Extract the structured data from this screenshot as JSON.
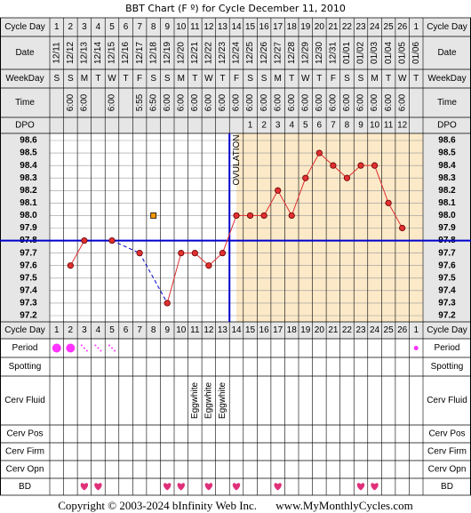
{
  "title": "BBT Chart (F º) for Cycle December 11, 2010",
  "footer": {
    "copyright": "Copyright © 2003-2024 bInfinity Web Inc.",
    "site": "www.MyMonthlyCycles.com"
  },
  "colors": {
    "coverline": "#0000cc",
    "temp_line": "#e03030",
    "point_fill": "#e03030",
    "post_ovulation_shade": "#fbe9c8",
    "header_bg": "#e6e6e6",
    "period_fill": "#ff33ff",
    "heart": "#e0307a",
    "marker": "#ff9900"
  },
  "row_labels": {
    "cycle_day": "Cycle Day",
    "date": "Date",
    "weekday": "WeekDay",
    "time": "Time",
    "dpo": "DPO",
    "period": "Period",
    "spotting": "Spotting",
    "cerv_fluid": "Cerv Fluid",
    "cerv_pos": "Cerv Pos",
    "cerv_firm": "Cerv Firm",
    "cerv_opn": "Cerv Opn",
    "bd": "BD"
  },
  "cycle_days": [
    "1",
    "2",
    "3",
    "4",
    "5",
    "6",
    "7",
    "8",
    "9",
    "10",
    "11",
    "12",
    "13",
    "14",
    "15",
    "16",
    "17",
    "18",
    "19",
    "20",
    "21",
    "22",
    "23",
    "24",
    "25",
    "26",
    "1"
  ],
  "dates": [
    "12/11",
    "12/12",
    "12/13",
    "12/14",
    "12/15",
    "12/16",
    "12/17",
    "12/18",
    "12/19",
    "12/20",
    "12/21",
    "12/22",
    "12/23",
    "12/24",
    "12/25",
    "12/26",
    "12/27",
    "12/28",
    "12/29",
    "12/30",
    "12/31",
    "01/01",
    "01/02",
    "01/03",
    "01/04",
    "01/05",
    "01/06"
  ],
  "weekdays": [
    "S",
    "S",
    "M",
    "T",
    "W",
    "T",
    "F",
    "S",
    "S",
    "M",
    "T",
    "W",
    "T",
    "F",
    "S",
    "S",
    "M",
    "T",
    "W",
    "T",
    "F",
    "S",
    "S",
    "M",
    "T",
    "W",
    "T"
  ],
  "times": [
    "",
    "6:00",
    "6:00",
    "",
    "6:00",
    "",
    "5:55",
    "6:50",
    "6:00",
    "6:00",
    "6:00",
    "6:00",
    "6:00",
    "6:00",
    "6:00",
    "6:00",
    "6:00",
    "6:00",
    "6:00",
    "6:00",
    "6:00",
    "6:00",
    "6:00",
    "6:00",
    "6:00",
    "6:00",
    ""
  ],
  "dpo": [
    "",
    "",
    "",
    "",
    "",
    "",
    "",
    "",
    "",
    "",
    "",
    "",
    "",
    "",
    "1",
    "2",
    "3",
    "4",
    "5",
    "6",
    "7",
    "8",
    "9",
    "10",
    "11",
    "12",
    ""
  ],
  "period": [
    "heavy",
    "heavy",
    "spotting",
    "spotting",
    "spotting",
    "",
    "",
    "",
    "",
    "",
    "",
    "",
    "",
    "",
    "",
    "",
    "",
    "",
    "",
    "",
    "",
    "",
    "",
    "",
    "",
    "",
    "light"
  ],
  "cerv_fluid": [
    "",
    "",
    "",
    "",
    "",
    "",
    "",
    "",
    "",
    "",
    "Eggwhite",
    "Eggwhite",
    "Eggwhite",
    "",
    "",
    "",
    "",
    "",
    "",
    "",
    "",
    "",
    "",
    "",
    "",
    "",
    ""
  ],
  "bd": [
    false,
    false,
    true,
    true,
    false,
    false,
    false,
    false,
    true,
    true,
    false,
    true,
    false,
    true,
    false,
    false,
    true,
    false,
    false,
    false,
    false,
    false,
    true,
    true,
    false,
    false,
    false
  ],
  "chart_data": {
    "type": "line",
    "x": [
      1,
      2,
      3,
      4,
      5,
      6,
      7,
      8,
      9,
      10,
      11,
      12,
      13,
      14,
      15,
      16,
      17,
      18,
      19,
      20,
      21,
      22,
      23,
      24,
      25,
      26,
      27
    ],
    "series": [
      {
        "values": [
          null,
          97.6,
          97.8,
          null,
          97.8,
          null,
          97.7,
          null,
          97.3,
          97.7,
          97.7,
          97.6,
          97.7,
          98.0,
          98.0,
          98.0,
          98.2,
          98.0,
          98.3,
          98.5,
          98.4,
          98.3,
          98.4,
          98.4,
          98.1,
          97.9,
          null
        ]
      }
    ],
    "unconnected_points": [
      {
        "x": 8,
        "y": 98.0
      }
    ],
    "coverline": 97.8,
    "ovulation_day": 14,
    "ovulation_label": "OVULATION",
    "y_ticks": [
      "98.6",
      "98.5",
      "98.4",
      "98.3",
      "98.2",
      "98.1",
      "98.0",
      "97.9",
      "97.8",
      "97.7",
      "97.6",
      "97.5",
      "97.4",
      "97.3",
      "97.2"
    ],
    "ylim": [
      97.2,
      98.6
    ],
    "grid": true
  }
}
